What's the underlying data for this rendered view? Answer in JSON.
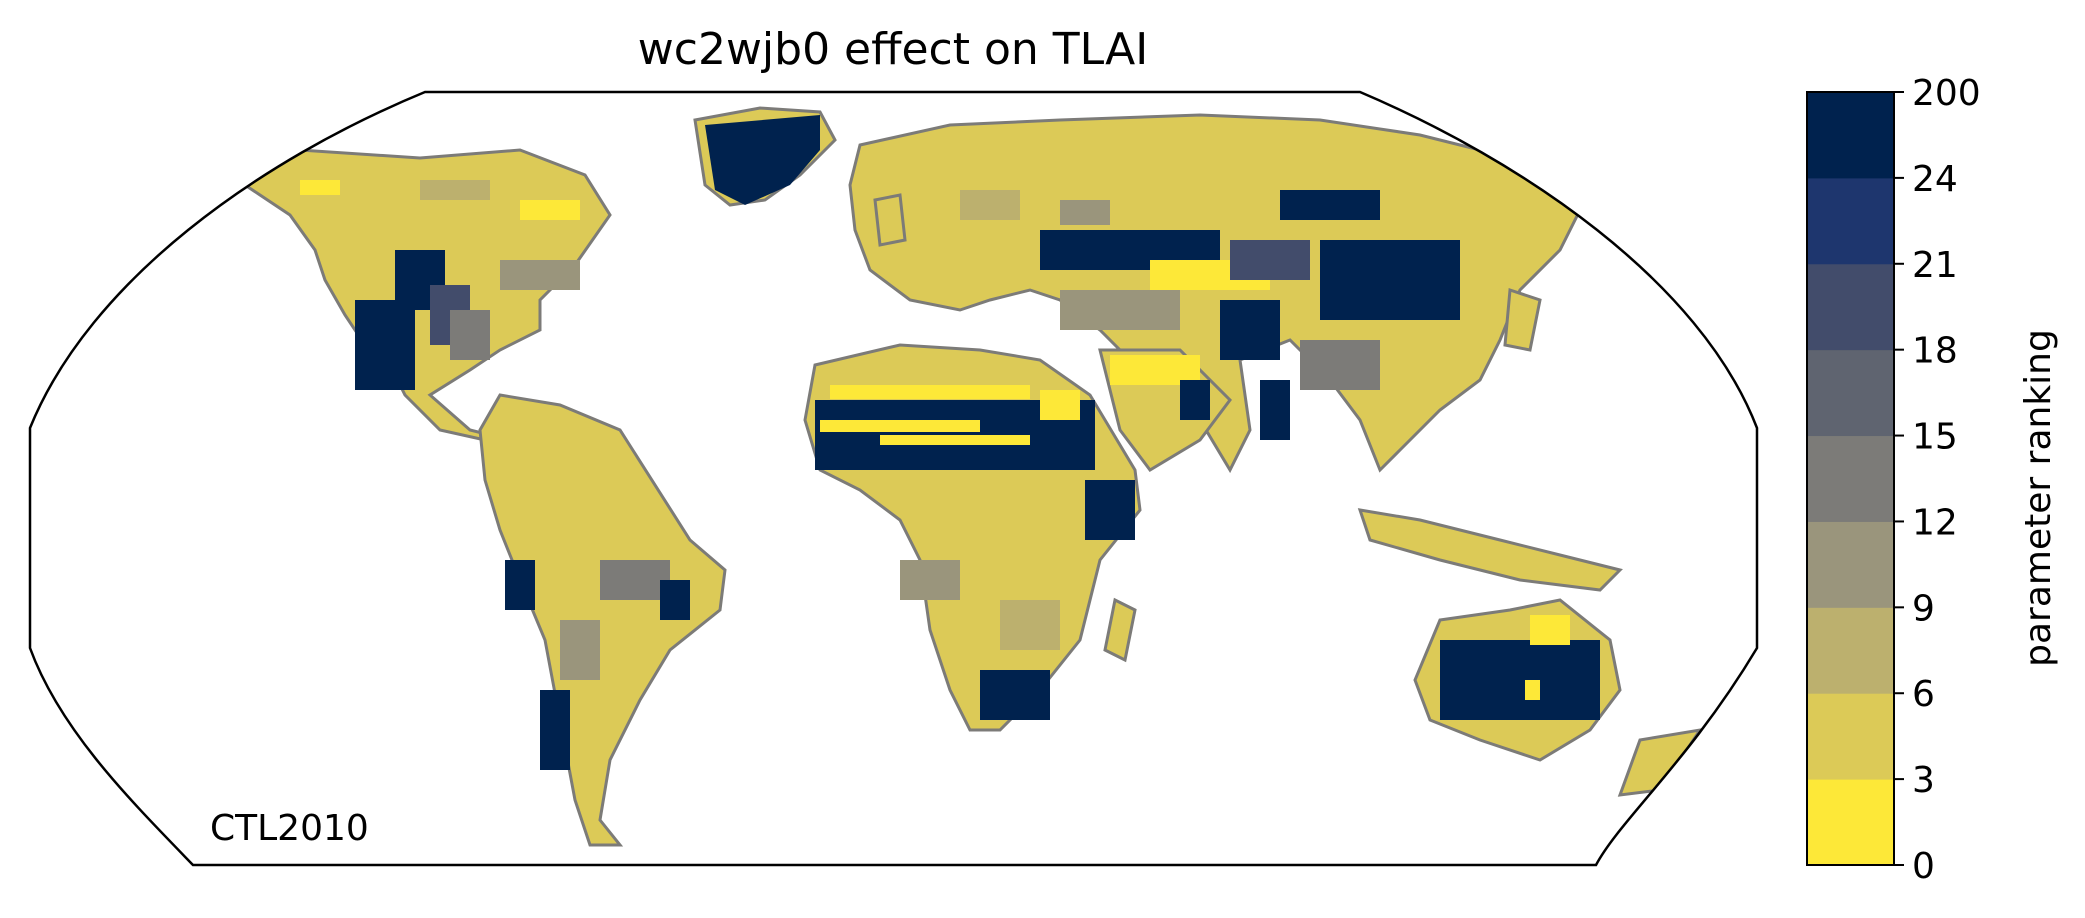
{
  "title": "wc2wjb0 effect on TLAI",
  "corner_label": "CTL2010",
  "colorbar": {
    "label": "parameter ranking",
    "ticks": [
      "0",
      "3",
      "6",
      "9",
      "12",
      "15",
      "18",
      "21",
      "24",
      "200"
    ],
    "colors": [
      "#fde838",
      "#dcca57",
      "#bcb06e",
      "#9a957c",
      "#7c7b78",
      "#5f6470",
      "#424c6b",
      "#1e366e",
      "#00224e"
    ]
  },
  "land_fill": "#dcca57",
  "coastline_color": "#7c7b78"
}
